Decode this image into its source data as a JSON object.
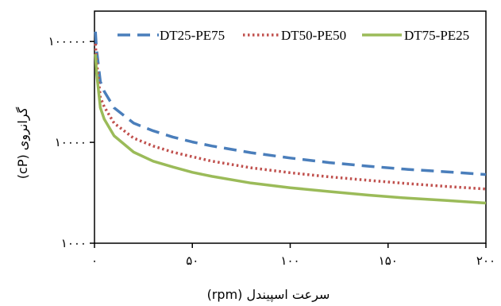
{
  "chart_data": {
    "type": "line",
    "title": "",
    "xlabel": "سرعت اسپیندل (rpm)",
    "ylabel": "گرانروی (cP)",
    "x_scale": "linear",
    "y_scale": "log",
    "xlim": [
      0,
      200
    ],
    "ylim": [
      1000,
      200000
    ],
    "grid": false,
    "legend_position": "top",
    "x_ticks": [
      {
        "value": 0,
        "label": "۰"
      },
      {
        "value": 50,
        "label": "۵۰"
      },
      {
        "value": 100,
        "label": "۱۰۰"
      },
      {
        "value": 150,
        "label": "۱۵۰"
      },
      {
        "value": 200,
        "label": "۲۰۰"
      }
    ],
    "y_ticks": [
      {
        "value": 1000,
        "label": "۱۰۰۰"
      },
      {
        "value": 10000,
        "label": "۱۰۰۰۰"
      },
      {
        "value": 100000,
        "label": "۱۰۰۰۰۰"
      }
    ],
    "series": [
      {
        "name": "DT25-PE75",
        "color": "#4a7ebb",
        "dash": "long-dash",
        "x": [
          0.5,
          1,
          3,
          5,
          10,
          20,
          30,
          40,
          50,
          60,
          80,
          100,
          120,
          140,
          160,
          180,
          200
        ],
        "y": [
          125000,
          85000,
          40000,
          32000,
          22000,
          15500,
          13000,
          11300,
          10100,
          9200,
          7900,
          7000,
          6300,
          5800,
          5400,
          5100,
          4800
        ]
      },
      {
        "name": "DT50-PE50",
        "color": "#c0504d",
        "dash": "dotted",
        "x": [
          0.5,
          1,
          3,
          5,
          10,
          20,
          30,
          40,
          50,
          60,
          80,
          100,
          120,
          140,
          160,
          180,
          200
        ],
        "y": [
          95000,
          65000,
          28000,
          22500,
          15500,
          11000,
          9200,
          8000,
          7200,
          6500,
          5600,
          5000,
          4550,
          4200,
          3900,
          3650,
          3450
        ]
      },
      {
        "name": "DT75-PE25",
        "color": "#9bbb59",
        "dash": "solid",
        "x": [
          0.5,
          1,
          3,
          5,
          10,
          20,
          30,
          40,
          50,
          60,
          80,
          100,
          120,
          140,
          160,
          180,
          200
        ],
        "y": [
          75000,
          50000,
          22000,
          17000,
          11600,
          8000,
          6500,
          5700,
          5050,
          4600,
          3950,
          3550,
          3250,
          3000,
          2800,
          2650,
          2500
        ]
      }
    ]
  }
}
